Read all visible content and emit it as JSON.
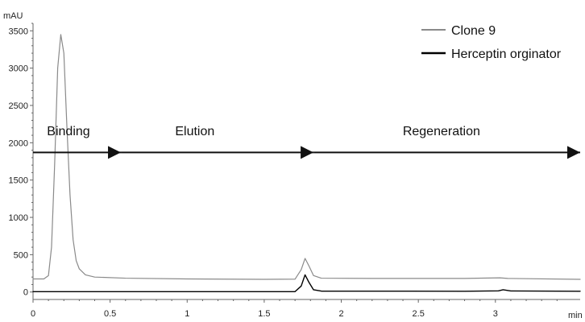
{
  "chart_data": {
    "type": "line",
    "ylabel_unit": "mAU",
    "xlabel_unit": "min",
    "xlim": [
      0,
      3.55
    ],
    "ylim": [
      -100,
      3600
    ],
    "x_ticks": [
      0,
      0.5,
      1,
      1.5,
      2,
      2.5,
      3
    ],
    "x_tick_labels": [
      "0",
      "0.5",
      "1",
      "1.5",
      "2",
      "2.5",
      "3"
    ],
    "y_ticks": [
      0,
      500,
      1000,
      1500,
      2000,
      2500,
      3000,
      3500
    ],
    "y_tick_labels": [
      "0",
      "500",
      "1000",
      "1500",
      "2000",
      "2500",
      "3000",
      "3500"
    ],
    "grid": false,
    "legend_position": "top-right",
    "series": [
      {
        "name": "Clone 9",
        "color": "#8a8a8a",
        "points": [
          [
            0.0,
            175
          ],
          [
            0.07,
            175
          ],
          [
            0.1,
            220
          ],
          [
            0.12,
            600
          ],
          [
            0.14,
            1700
          ],
          [
            0.16,
            3000
          ],
          [
            0.18,
            3450
          ],
          [
            0.2,
            3200
          ],
          [
            0.22,
            2200
          ],
          [
            0.24,
            1300
          ],
          [
            0.26,
            700
          ],
          [
            0.28,
            420
          ],
          [
            0.3,
            310
          ],
          [
            0.34,
            230
          ],
          [
            0.4,
            200
          ],
          [
            0.6,
            185
          ],
          [
            1.0,
            175
          ],
          [
            1.5,
            170
          ],
          [
            1.7,
            172
          ],
          [
            1.74,
            300
          ],
          [
            1.765,
            450
          ],
          [
            1.79,
            350
          ],
          [
            1.82,
            220
          ],
          [
            1.87,
            185
          ],
          [
            2.2,
            182
          ],
          [
            2.8,
            182
          ],
          [
            3.03,
            190
          ],
          [
            3.08,
            182
          ],
          [
            3.55,
            170
          ]
        ]
      },
      {
        "name": "Herceptin orginator",
        "color": "#000000",
        "points": [
          [
            0.0,
            5
          ],
          [
            1.7,
            5
          ],
          [
            1.74,
            80
          ],
          [
            1.765,
            230
          ],
          [
            1.79,
            130
          ],
          [
            1.82,
            30
          ],
          [
            1.87,
            12
          ],
          [
            2.8,
            10
          ],
          [
            3.02,
            15
          ],
          [
            3.05,
            30
          ],
          [
            3.1,
            14
          ],
          [
            3.55,
            10
          ]
        ]
      }
    ],
    "annotations": [
      {
        "label": "Binding",
        "x_start": 0.0,
        "x_end": 0.57,
        "y": 1870,
        "text_x": 0.23,
        "text_y": 2100
      },
      {
        "label": "Elution",
        "x_start": 0.57,
        "x_end": 1.82,
        "y": 1870,
        "text_x": 1.05,
        "text_y": 2100
      },
      {
        "label": "Regeneration",
        "x_start": 1.82,
        "x_end": 3.55,
        "y": 1870,
        "text_x": 2.65,
        "text_y": 2100
      }
    ]
  }
}
